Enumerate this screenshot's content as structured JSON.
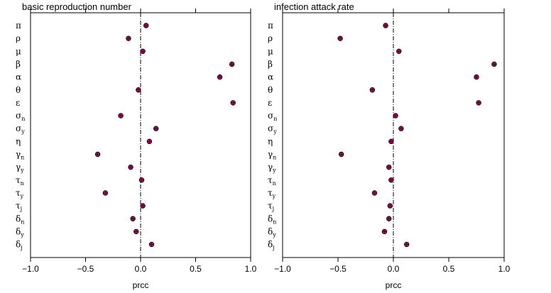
{
  "chart_data": [
    {
      "type": "scatter",
      "title": "basic reproduction number",
      "xlabel": "prcc",
      "xlim": [
        -1.0,
        1.0
      ],
      "xticks": [
        "−1.0",
        "−0.5",
        "0.0",
        "0.5",
        "1.0"
      ],
      "reference_line_x": 0,
      "marker_color": "#c0106e",
      "points": [
        {
          "param": "π",
          "sub": "",
          "value": 0.05
        },
        {
          "param": "ρ",
          "sub": "",
          "value": -0.11
        },
        {
          "param": "μ",
          "sub": "",
          "value": 0.02
        },
        {
          "param": "β",
          "sub": "",
          "value": 0.83
        },
        {
          "param": "α",
          "sub": "",
          "value": 0.72
        },
        {
          "param": "θ",
          "sub": "",
          "value": -0.02
        },
        {
          "param": "ε",
          "sub": "",
          "value": 0.84
        },
        {
          "param": "σ",
          "sub": "n",
          "value": -0.18
        },
        {
          "param": "σ",
          "sub": "y",
          "value": 0.14
        },
        {
          "param": "η",
          "sub": "",
          "value": 0.08
        },
        {
          "param": "γ",
          "sub": "n",
          "value": -0.39
        },
        {
          "param": "γ",
          "sub": "y",
          "value": -0.09
        },
        {
          "param": "τ",
          "sub": "n",
          "value": 0.01
        },
        {
          "param": "τ",
          "sub": "y",
          "value": -0.32
        },
        {
          "param": "τ",
          "sub": "j",
          "value": 0.02
        },
        {
          "param": "δ",
          "sub": "n",
          "value": -0.07
        },
        {
          "param": "δ",
          "sub": "y",
          "value": -0.04
        },
        {
          "param": "δ",
          "sub": "j",
          "value": 0.1
        }
      ]
    },
    {
      "type": "scatter",
      "title": "infection attack rate",
      "xlabel": "prcc",
      "xlim": [
        -1.0,
        1.0
      ],
      "xticks": [
        "−1.0",
        "−0.5",
        "0.0",
        "0.5",
        "1.0"
      ],
      "reference_line_x": 0,
      "marker_color": "#c0106e",
      "points": [
        {
          "param": "π",
          "sub": "",
          "value": -0.07
        },
        {
          "param": "ρ",
          "sub": "",
          "value": -0.48
        },
        {
          "param": "μ",
          "sub": "",
          "value": 0.05
        },
        {
          "param": "β",
          "sub": "",
          "value": 0.91
        },
        {
          "param": "α",
          "sub": "",
          "value": 0.75
        },
        {
          "param": "θ",
          "sub": "",
          "value": -0.19
        },
        {
          "param": "ε",
          "sub": "",
          "value": 0.77
        },
        {
          "param": "σ",
          "sub": "n",
          "value": 0.02
        },
        {
          "param": "σ",
          "sub": "y",
          "value": 0.07
        },
        {
          "param": "η",
          "sub": "",
          "value": -0.02
        },
        {
          "param": "γ",
          "sub": "n",
          "value": -0.47
        },
        {
          "param": "γ",
          "sub": "y",
          "value": -0.04
        },
        {
          "param": "τ",
          "sub": "n",
          "value": -0.02
        },
        {
          "param": "τ",
          "sub": "y",
          "value": -0.17
        },
        {
          "param": "τ",
          "sub": "j",
          "value": -0.03
        },
        {
          "param": "δ",
          "sub": "n",
          "value": -0.04
        },
        {
          "param": "δ",
          "sub": "y",
          "value": -0.08
        },
        {
          "param": "δ",
          "sub": "j",
          "value": 0.12
        }
      ]
    }
  ]
}
